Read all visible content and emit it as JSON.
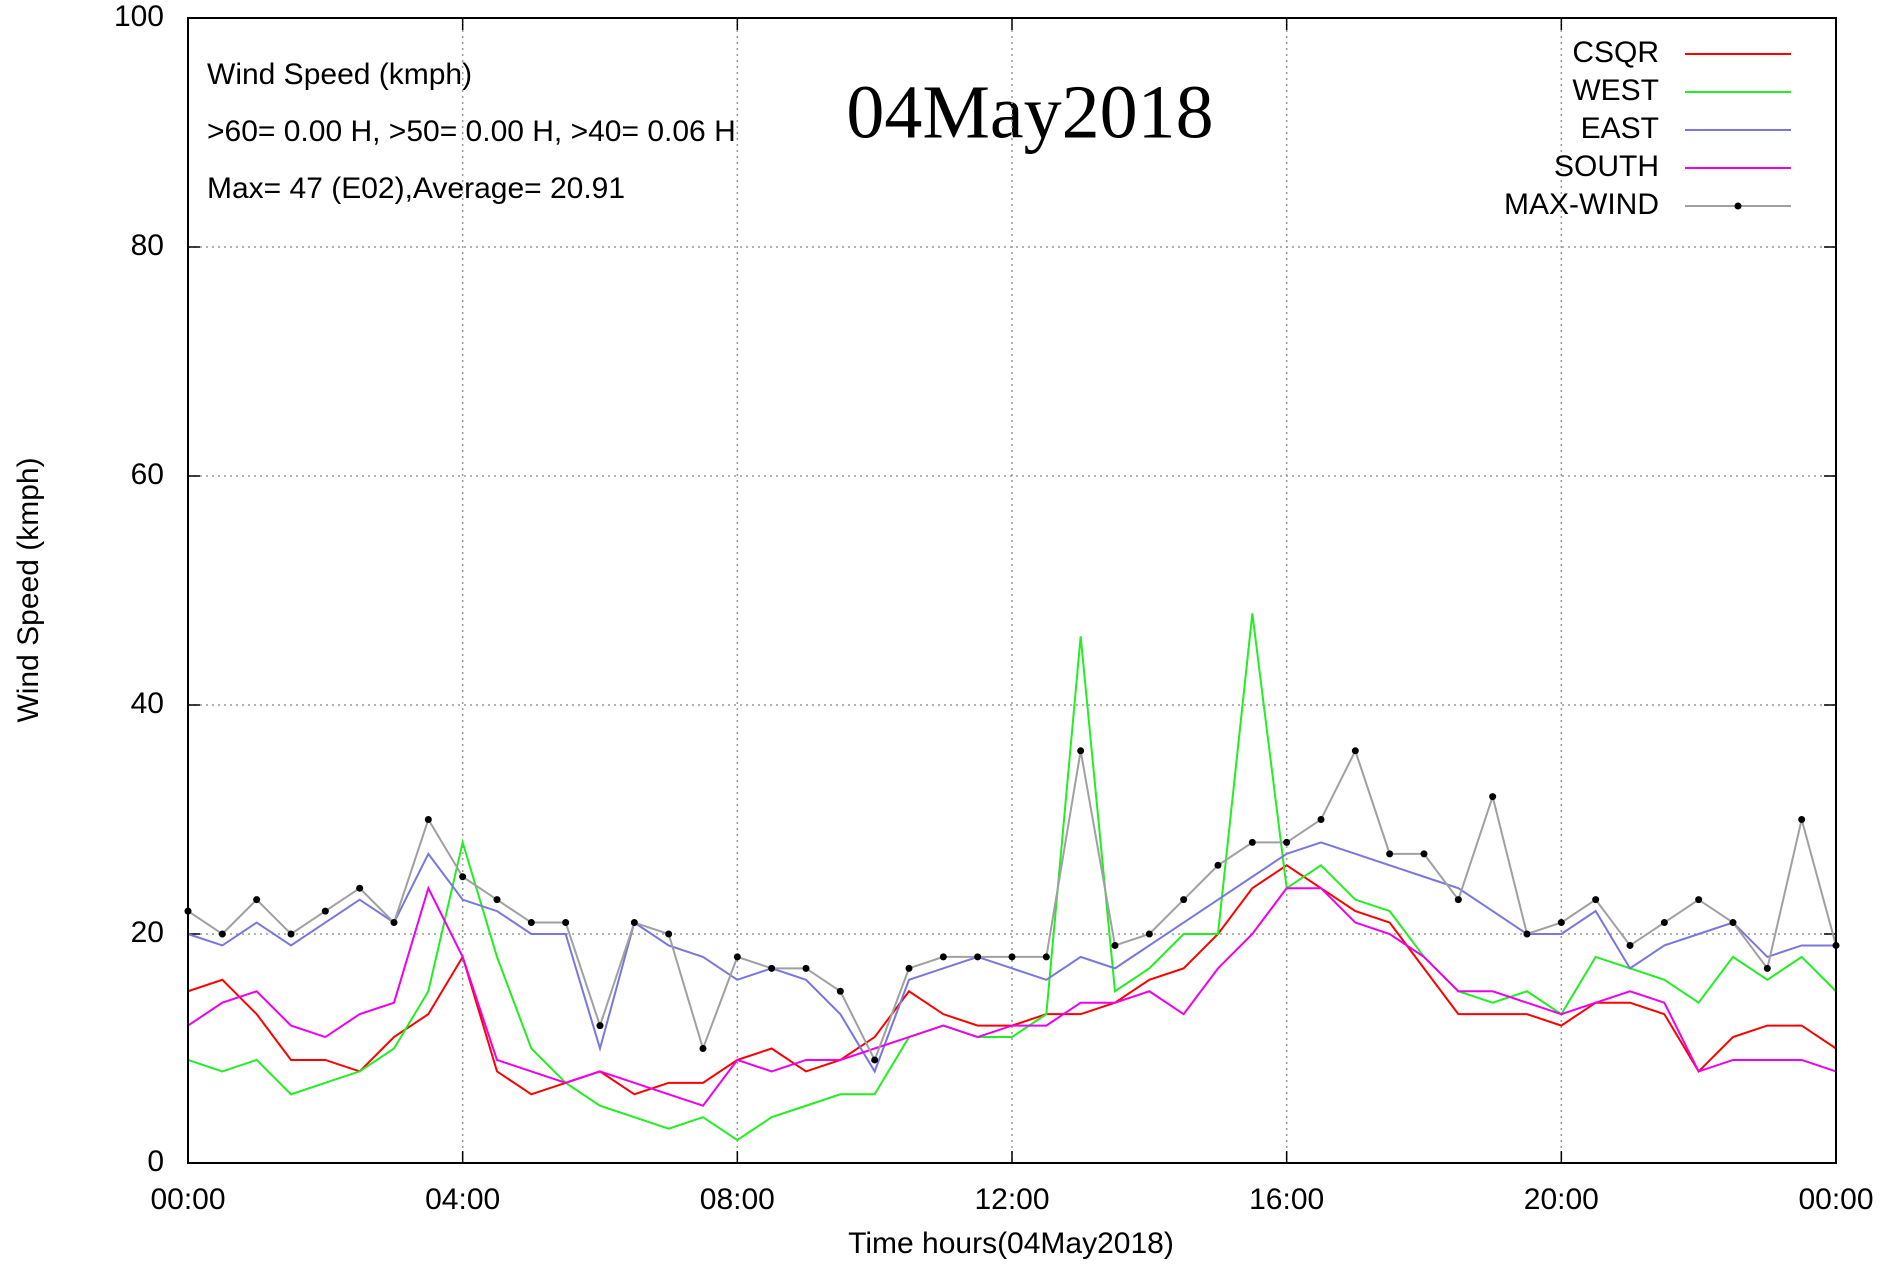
{
  "chart_data": {
    "type": "line",
    "xlabel": "Time hours(04May2018)",
    "ylabel": "Wind Speed (kmph)",
    "annotations": [
      "Wind Speed (kmph)",
      ">60=  0.00 H, >50=  0.00 H, >40=  0.06 H",
      "Max= 47 (E02),Average= 20.91"
    ],
    "date_label": "04May2018",
    "x": [
      0,
      0.5,
      1,
      1.5,
      2,
      2.5,
      3,
      3.5,
      4,
      4.5,
      5,
      5.5,
      6,
      6.5,
      7,
      7.5,
      8,
      8.5,
      9,
      9.5,
      10,
      10.5,
      11,
      11.5,
      12,
      12.5,
      13,
      13.5,
      14,
      14.5,
      15,
      15.5,
      16,
      16.5,
      17,
      17.5,
      18,
      18.5,
      19,
      19.5,
      20,
      20.5,
      21,
      21.5,
      22,
      22.5,
      23,
      23.5,
      24
    ],
    "series": [
      {
        "name": "CSQR",
        "color": "#ff0000",
        "values": [
          15,
          16,
          13,
          9,
          9,
          8,
          11,
          13,
          18,
          8,
          6,
          7,
          8,
          6,
          7,
          7,
          9,
          10,
          8,
          9,
          11,
          15,
          13,
          12,
          12,
          13,
          13,
          14,
          16,
          17,
          20,
          24,
          26,
          24,
          22,
          21,
          17,
          13,
          13,
          13,
          12,
          14,
          14,
          13,
          8,
          11,
          12,
          12,
          10
        ]
      },
      {
        "name": "WEST",
        "color": "#22ee22",
        "values": [
          9,
          8,
          9,
          6,
          7,
          8,
          10,
          15,
          28,
          18,
          10,
          7,
          5,
          4,
          3,
          4,
          2,
          4,
          5,
          6,
          6,
          11,
          12,
          11,
          11,
          13,
          46,
          15,
          17,
          20,
          20,
          48,
          24,
          26,
          23,
          22,
          18,
          15,
          14,
          15,
          13,
          18,
          17,
          16,
          14,
          18,
          16,
          18,
          15
        ]
      },
      {
        "name": "EAST",
        "color": "#7777dd",
        "values": [
          20,
          19,
          21,
          19,
          21,
          23,
          21,
          27,
          23,
          22,
          20,
          20,
          10,
          21,
          19,
          18,
          16,
          17,
          16,
          13,
          8,
          16,
          17,
          18,
          17,
          16,
          18,
          17,
          19,
          21,
          23,
          25,
          27,
          28,
          27,
          26,
          25,
          24,
          22,
          20,
          20,
          22,
          17,
          19,
          20,
          21,
          18,
          19,
          19
        ]
      },
      {
        "name": "SOUTH",
        "color": "#ee00ee",
        "values": [
          12,
          14,
          15,
          12,
          11,
          13,
          14,
          24,
          18,
          9,
          8,
          7,
          8,
          7,
          6,
          5,
          9,
          8,
          9,
          9,
          10,
          11,
          12,
          11,
          12,
          12,
          14,
          14,
          15,
          13,
          17,
          20,
          24,
          24,
          21,
          20,
          18,
          15,
          15,
          14,
          13,
          14,
          15,
          14,
          8,
          9,
          9,
          9,
          8
        ]
      },
      {
        "name": "MAX-WIND",
        "color": "#a0a0a0",
        "marker": "dot",
        "values": [
          22,
          20,
          23,
          20,
          22,
          24,
          21,
          30,
          25,
          23,
          21,
          21,
          12,
          21,
          20,
          10,
          18,
          17,
          17,
          15,
          9,
          17,
          18,
          18,
          18,
          18,
          36,
          19,
          20,
          23,
          26,
          28,
          28,
          30,
          36,
          27,
          27,
          23,
          32,
          20,
          21,
          23,
          19,
          21,
          23,
          21,
          17,
          30,
          19
        ]
      }
    ],
    "xlim": [
      0,
      24
    ],
    "xticks": [
      {
        "value": 0,
        "label": "00:00"
      },
      {
        "value": 4,
        "label": "04:00"
      },
      {
        "value": 8,
        "label": "08:00"
      },
      {
        "value": 12,
        "label": "12:00"
      },
      {
        "value": 16,
        "label": "16:00"
      },
      {
        "value": 20,
        "label": "20:00"
      },
      {
        "value": 24,
        "label": "00:00"
      }
    ],
    "ylim": [
      0,
      100
    ],
    "yticks": [
      0,
      20,
      40,
      60,
      80,
      100
    ],
    "grid": true,
    "legend": "upper right"
  }
}
